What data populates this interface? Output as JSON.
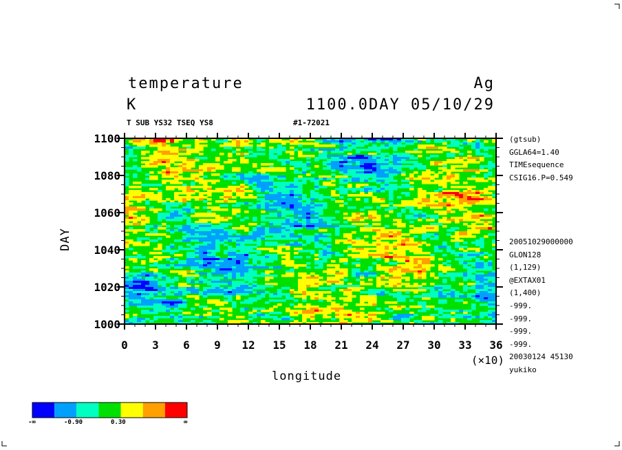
{
  "header": {
    "title_left": "temperature",
    "title_right": "Ag",
    "unit": "K",
    "datetime": "1100.0DAY 05/10/29",
    "sub_left": "T SUB YS32 TSEQ YS8",
    "sub_mid": "#1-72021"
  },
  "side_info_top": [
    "(gtsub)",
    "GGLA64=1.40",
    "TIMEsequence",
    "CSIG16.P=0.549"
  ],
  "side_info_bottom": [
    "20051029000000",
    "GLON128",
    "(1,129)",
    "@EXTAX01",
    "(1,400)",
    "-999.",
    "-999.",
    "-999.",
    "-999.",
    "20030124  45130",
    "yukiko"
  ],
  "chart_data": {
    "type": "heatmap",
    "xlabel": "longitude",
    "ylabel": "DAY",
    "x_multiplier": "(×10)",
    "xlim": [
      0,
      36
    ],
    "ylim": [
      1000,
      1100
    ],
    "x_ticks": [
      "0",
      "3",
      "6",
      "9",
      "12",
      "15",
      "18",
      "21",
      "24",
      "27",
      "30",
      "33",
      "36"
    ],
    "y_ticks": [
      "1000",
      "1020",
      "1040",
      "1060",
      "1080",
      "1100"
    ],
    "colorbar": {
      "colors": [
        "#0000ff",
        "#00a0ff",
        "#00ffc0",
        "#00e000",
        "#ffff00",
        "#ffa000",
        "#ff0000"
      ],
      "labels": [
        "-∞",
        "-0.90",
        "0.30",
        "∞"
      ]
    }
  }
}
